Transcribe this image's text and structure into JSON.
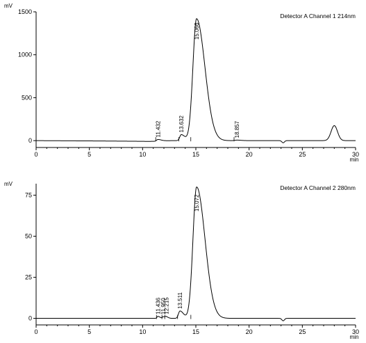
{
  "chart_data": [
    {
      "type": "line",
      "title": "",
      "annotation": "Detector A Channel 1 214nm",
      "ylabel": "mV",
      "xlabel": "min",
      "xlim": [
        0,
        30
      ],
      "ylim": [
        -80,
        1500
      ],
      "x_ticks": [
        0,
        5,
        10,
        15,
        20,
        25,
        30
      ],
      "y_ticks": [
        0,
        500,
        1000,
        1500
      ],
      "grid": false,
      "legend": "none",
      "baseline": [
        [
          0,
          0
        ],
        [
          3,
          -2
        ],
        [
          6,
          -4
        ],
        [
          9,
          -7
        ],
        [
          10.5,
          -9
        ],
        [
          11.2,
          -8
        ]
      ],
      "peaks": [
        {
          "rt": 11.432,
          "label": "11.432",
          "height": 18,
          "width": 0.45
        },
        {
          "rt": 13.632,
          "label": "13.632",
          "height": 70,
          "width": 0.5
        },
        {
          "rt": 15.066,
          "label": "15.066",
          "height": 1420,
          "width": 1.2
        },
        {
          "rt": 18.857,
          "label": "18.857",
          "height": 6,
          "width": 0.6
        }
      ],
      "extra_features": [
        {
          "x": 23.2,
          "y": -25,
          "note": "dip"
        },
        {
          "x": 28.0,
          "y": 175,
          "note": "late peak"
        }
      ]
    },
    {
      "type": "line",
      "title": "",
      "annotation": "Detector A Channel 2 280nm",
      "ylabel": "mV",
      "xlabel": "min",
      "xlim": [
        0,
        30
      ],
      "ylim": [
        -4,
        82
      ],
      "x_ticks": [
        0,
        5,
        10,
        15,
        20,
        25,
        30
      ],
      "y_ticks": [
        0,
        25,
        50,
        75
      ],
      "grid": false,
      "legend": "none",
      "peaks": [
        {
          "rt": 11.436,
          "label": "11.436",
          "height": 1.2,
          "width": 0.3
        },
        {
          "rt": 11.95,
          "label": "11.950",
          "height": 1.0,
          "width": 0.3
        },
        {
          "rt": 12.215,
          "label": "12.215",
          "height": 0.8,
          "width": 0.3
        },
        {
          "rt": 13.511,
          "label": "13.511",
          "height": 4.5,
          "width": 0.5
        },
        {
          "rt": 15.072,
          "label": "15.072",
          "height": 80,
          "width": 1.2
        }
      ],
      "extra_features": [
        {
          "x": 23.2,
          "y": -1.5,
          "note": "dip"
        }
      ]
    }
  ]
}
